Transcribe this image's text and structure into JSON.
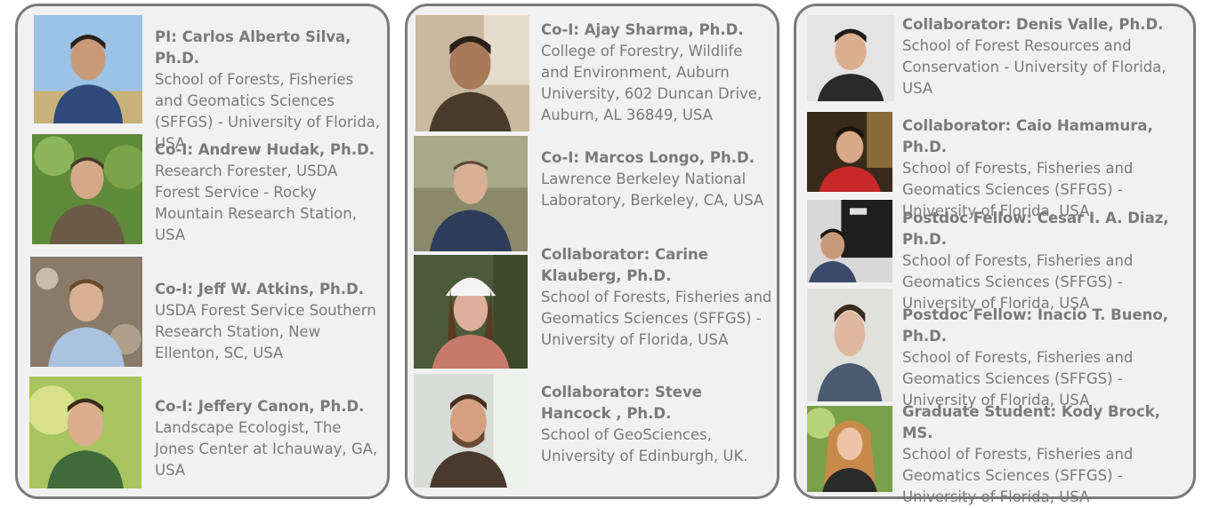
{
  "columns": [
    {
      "members": [
        {
          "name": "PI: Carlos Alberto Silva, Ph.D.",
          "affiliation": "School of Forests, Fisheries and Geomatics Sciences (SFFGS) - University of Florida, USA"
        },
        {
          "name": "Co-I: Andrew Hudak, Ph.D.",
          "affiliation": "Research Forester, USDA Forest Service - Rocky Mountain Research Station, USA"
        },
        {
          "name": "Co-I: Jeff W. Atkins, Ph.D.",
          "affiliation": "USDA Forest Service Southern Research Station, New Ellenton, SC, USA"
        },
        {
          "name": "Co-I: Jeffery Canon, Ph.D.",
          "affiliation": "Landscape Ecologist, The Jones Center at Ichauway, GA, USA"
        }
      ]
    },
    {
      "members": [
        {
          "name": "Co-I: Ajay Sharma, Ph.D.",
          "affiliation": "College of Forestry, Wildlife and Environment, Auburn University, 602 Duncan Drive, Auburn, AL 36849, USA"
        },
        {
          "name": "Co-I: Marcos Longo, Ph.D.",
          "affiliation": "Lawrence Berkeley National Laboratory, Berkeley, CA, USA"
        },
        {
          "name": "Collaborator: Carine Klauberg, Ph.D.",
          "affiliation": "School of Forests, Fisheries and Geomatics Sciences (SFFGS) - University of Florida, USA"
        },
        {
          "name": "Collaborator: Steve Hancock , Ph.D.",
          "affiliation": "School of GeoSciences, University of Edinburgh, UK."
        }
      ]
    },
    {
      "members": [
        {
          "name": "Collaborator: Denis Valle, Ph.D.",
          "affiliation": "School of Forest Resources and Conservation - University of Florida, USA"
        },
        {
          "name": "Collaborator: Caio Hamamura, Ph.D.",
          "affiliation": "School of Forests, Fisheries and Geomatics Sciences (SFFGS) - University of Florida, USA"
        },
        {
          "name": "Postdoc Fellow: Cesar I. A. Diaz, Ph.D.",
          "affiliation": "School of Forests, Fisheries and Geomatics Sciences (SFFGS) - University of Florida, USA"
        },
        {
          "name": "Postdoc Fellow: Inacio T. Bueno, Ph.D.",
          "affiliation": "School of Forests, Fisheries and Geomatics Sciences (SFFGS) - University of Florida, USA"
        },
        {
          "name": "Graduate Student: Kody Brock, MS.",
          "affiliation": "School of Forests, Fisheries and Geomatics Sciences (SFFGS) - University of Florida, USA"
        }
      ]
    }
  ],
  "colors": {
    "panel_background": "#f1f1f1",
    "panel_border": "#7a7a7a",
    "text": "#7a7a7a"
  }
}
